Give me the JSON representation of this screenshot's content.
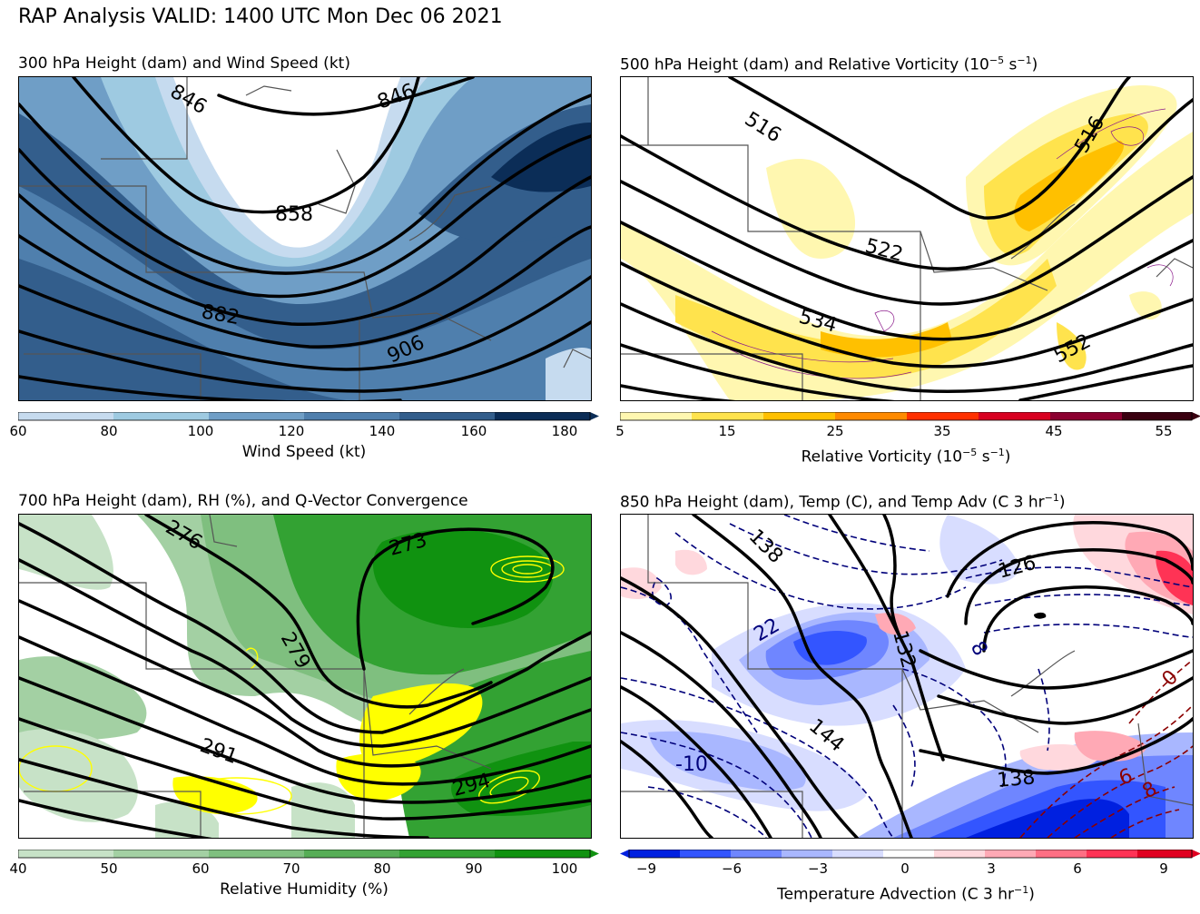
{
  "title": "RAP Analysis VALID: 1400 UTC Mon Dec 06 2021",
  "panels": [
    {
      "title": "300 hPa Height (dam) and Wind Speed (kt)",
      "colorbar_label": "Wind Speed (kt)",
      "ticks": [
        "60",
        "80",
        "100",
        "120",
        "140",
        "160",
        "180"
      ],
      "colors": [
        "#c6dbef",
        "#9ecae1",
        "#6f9ec6",
        "#4f7fad",
        "#335e8c",
        "#0b2d57"
      ],
      "contour_labels": [
        "846",
        "846",
        "858",
        "882",
        "906"
      ]
    },
    {
      "title_main": "500 hPa Height (dam) and Relative Vorticity (10",
      "title_exp": "−5",
      "title_unit": " s",
      "title_exp2": "−1",
      "title_end": ")",
      "colorbar_label_main": "Relative Vorticity (10",
      "colorbar_label_exp": "−5",
      "colorbar_label_unit": " s",
      "colorbar_label_exp2": "−1",
      "colorbar_label_end": ")",
      "ticks": [
        "5",
        "15",
        "25",
        "35",
        "45",
        "55"
      ],
      "colors": [
        "#fff7b0",
        "#ffe34d",
        "#ffc000",
        "#ff8a00",
        "#ff3000",
        "#d80020",
        "#8c0030",
        "#3a0010"
      ],
      "contour_labels": [
        "516",
        "516",
        "522",
        "534",
        "552"
      ]
    },
    {
      "title": "700 hPa Height (dam), RH (%), and Q-Vector Convergence",
      "colorbar_label": "Relative Humidity (%)",
      "ticks": [
        "40",
        "50",
        "60",
        "70",
        "80",
        "90",
        "100"
      ],
      "colors": [
        "#c7e2c7",
        "#a3d0a3",
        "#7fbf7f",
        "#56ad56",
        "#33a233",
        "#109210"
      ],
      "contour_labels": [
        "276",
        "273",
        "279",
        "291",
        "294"
      ]
    },
    {
      "title_main": "850 hPa Height (dam), Temp (C), and Temp Adv (C 3 hr",
      "title_exp": "−1",
      "title_end": ")",
      "colorbar_label_main": "Temperature Advection (C 3 hr",
      "colorbar_label_exp": "−1",
      "colorbar_label_end": ")",
      "ticks": [
        "−9",
        "−6",
        "−3",
        "0",
        "3",
        "6",
        "9"
      ],
      "colors": [
        "#0020e0",
        "#3355ff",
        "#6f86ff",
        "#a9b7ff",
        "#d8ddff",
        "#ffffff",
        "#ffd8dd",
        "#ffa9b5",
        "#ff6f84",
        "#ff3355",
        "#e00020"
      ],
      "contour_labels": [
        "138",
        "126",
        "132",
        "144",
        "138",
        "22",
        "-10",
        "8",
        "6",
        "8",
        "0"
      ]
    }
  ]
}
